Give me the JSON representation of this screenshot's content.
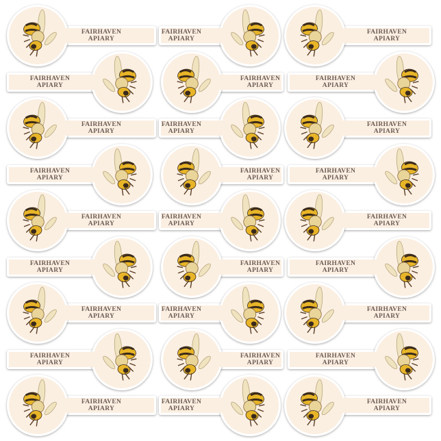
{
  "product": "sticker sheet",
  "sticker_text": {
    "line1": "FAIRHAVEN",
    "line2": "APIARY"
  },
  "sticker_count": 27,
  "icon": "bee-illustration",
  "colors": {
    "sticker_fill": "#fbefe2",
    "text": "#6e5c55",
    "bee_yellow": "#e8b528",
    "bee_dark": "#3a2a1c"
  }
}
